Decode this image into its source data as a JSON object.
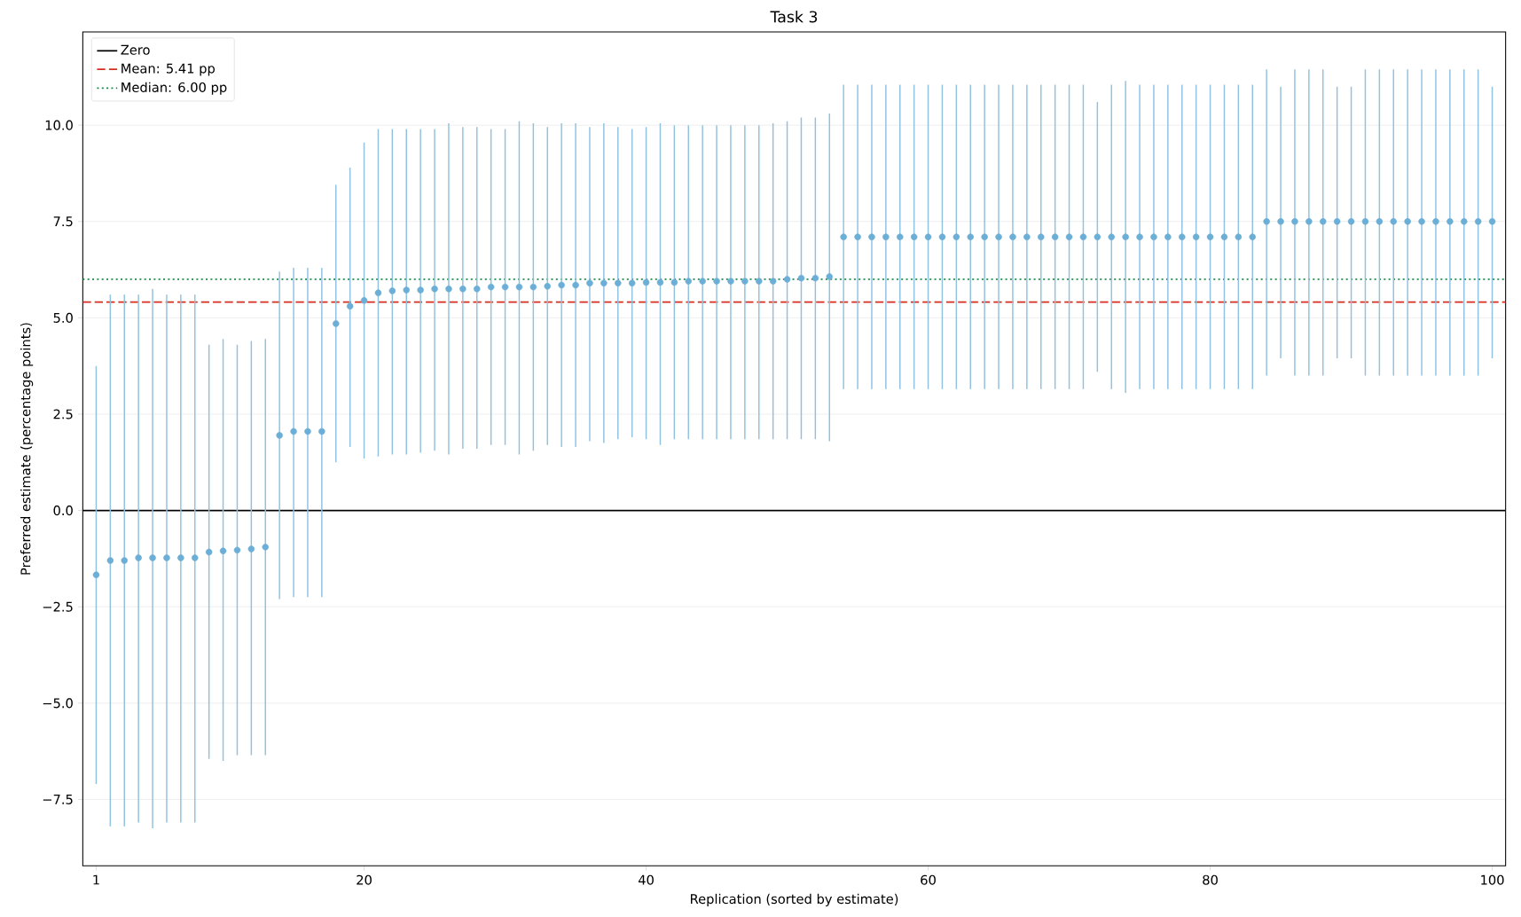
{
  "chart_data": {
    "type": "scatter",
    "title": "Task 3",
    "xlabel": "Replication (sorted by estimate)",
    "ylabel": "Preferred estimate (percentage points)",
    "x": [
      1,
      2,
      3,
      4,
      5,
      6,
      7,
      8,
      9,
      10,
      11,
      12,
      13,
      14,
      15,
      16,
      17,
      18,
      19,
      20,
      21,
      22,
      23,
      24,
      25,
      26,
      27,
      28,
      29,
      30,
      31,
      32,
      33,
      34,
      35,
      36,
      37,
      38,
      39,
      40,
      41,
      42,
      43,
      44,
      45,
      46,
      47,
      48,
      49,
      50,
      51,
      52,
      53,
      54,
      55,
      56,
      57,
      58,
      59,
      60,
      61,
      62,
      63,
      64,
      65,
      66,
      67,
      68,
      69,
      70,
      71,
      72,
      73,
      74,
      75,
      76,
      77,
      78,
      79,
      80,
      81,
      82,
      83,
      84,
      85,
      86,
      87,
      88,
      89,
      90,
      91,
      92,
      93,
      94,
      95,
      96,
      97,
      98,
      99,
      100
    ],
    "values": [
      -1.67,
      -1.3,
      -1.3,
      -1.23,
      -1.23,
      -1.23,
      -1.23,
      -1.23,
      -1.08,
      -1.05,
      -1.03,
      -1.0,
      -0.95,
      1.95,
      2.05,
      2.05,
      2.05,
      4.85,
      5.3,
      5.45,
      5.65,
      5.7,
      5.72,
      5.72,
      5.75,
      5.75,
      5.75,
      5.75,
      5.8,
      5.8,
      5.8,
      5.8,
      5.82,
      5.85,
      5.85,
      5.9,
      5.9,
      5.9,
      5.9,
      5.92,
      5.92,
      5.92,
      5.95,
      5.95,
      5.95,
      5.95,
      5.95,
      5.95,
      5.95,
      6.0,
      6.03,
      6.03,
      6.07,
      7.1,
      7.1,
      7.1,
      7.1,
      7.1,
      7.1,
      7.1,
      7.1,
      7.1,
      7.1,
      7.1,
      7.1,
      7.1,
      7.1,
      7.1,
      7.1,
      7.1,
      7.1,
      7.1,
      7.1,
      7.1,
      7.1,
      7.1,
      7.1,
      7.1,
      7.1,
      7.1,
      7.1,
      7.1,
      7.1,
      7.5,
      7.5,
      7.5,
      7.5,
      7.5,
      7.5,
      7.5,
      7.5,
      7.5,
      7.5,
      7.5,
      7.5,
      7.5,
      7.5,
      7.5,
      7.5,
      7.5
    ],
    "errors": [
      [
        -7.1,
        3.75
      ],
      [
        -8.2,
        5.6
      ],
      [
        -8.2,
        5.6
      ],
      [
        -8.1,
        5.6
      ],
      [
        -8.25,
        5.75
      ],
      [
        -8.1,
        5.6
      ],
      [
        -8.1,
        5.6
      ],
      [
        -8.1,
        5.6
      ],
      [
        -6.45,
        4.3
      ],
      [
        -6.5,
        4.45
      ],
      [
        -6.35,
        4.3
      ],
      [
        -6.35,
        4.4
      ],
      [
        -6.35,
        4.45
      ],
      [
        -2.3,
        6.2
      ],
      [
        -2.25,
        6.3
      ],
      [
        -2.25,
        6.3
      ],
      [
        -2.25,
        6.3
      ],
      [
        1.25,
        8.45
      ],
      [
        1.65,
        8.9
      ],
      [
        1.35,
        9.55
      ],
      [
        1.4,
        9.9
      ],
      [
        1.45,
        9.9
      ],
      [
        1.45,
        9.9
      ],
      [
        1.5,
        9.9
      ],
      [
        1.55,
        9.9
      ],
      [
        1.45,
        10.05
      ],
      [
        1.6,
        9.95
      ],
      [
        1.6,
        9.95
      ],
      [
        1.7,
        9.9
      ],
      [
        1.7,
        9.9
      ],
      [
        1.45,
        10.1
      ],
      [
        1.55,
        10.05
      ],
      [
        1.7,
        9.95
      ],
      [
        1.65,
        10.05
      ],
      [
        1.65,
        10.05
      ],
      [
        1.8,
        9.95
      ],
      [
        1.75,
        10.05
      ],
      [
        1.85,
        9.95
      ],
      [
        1.9,
        9.9
      ],
      [
        1.85,
        9.95
      ],
      [
        1.7,
        10.05
      ],
      [
        1.85,
        10.0
      ],
      [
        1.85,
        10.0
      ],
      [
        1.85,
        10.0
      ],
      [
        1.85,
        10.0
      ],
      [
        1.85,
        10.0
      ],
      [
        1.85,
        10.0
      ],
      [
        1.85,
        10.0
      ],
      [
        1.85,
        10.05
      ],
      [
        1.85,
        10.1
      ],
      [
        1.85,
        10.2
      ],
      [
        1.85,
        10.2
      ],
      [
        1.8,
        10.3
      ],
      [
        3.15,
        11.05
      ],
      [
        3.15,
        11.05
      ],
      [
        3.15,
        11.05
      ],
      [
        3.15,
        11.05
      ],
      [
        3.15,
        11.05
      ],
      [
        3.15,
        11.05
      ],
      [
        3.15,
        11.05
      ],
      [
        3.15,
        11.05
      ],
      [
        3.15,
        11.05
      ],
      [
        3.15,
        11.05
      ],
      [
        3.15,
        11.05
      ],
      [
        3.15,
        11.05
      ],
      [
        3.15,
        11.05
      ],
      [
        3.15,
        11.05
      ],
      [
        3.15,
        11.05
      ],
      [
        3.15,
        11.05
      ],
      [
        3.15,
        11.05
      ],
      [
        3.15,
        11.05
      ],
      [
        3.6,
        10.6
      ],
      [
        3.15,
        11.05
      ],
      [
        3.05,
        11.15
      ],
      [
        3.15,
        11.05
      ],
      [
        3.15,
        11.05
      ],
      [
        3.15,
        11.05
      ],
      [
        3.15,
        11.05
      ],
      [
        3.15,
        11.05
      ],
      [
        3.15,
        11.05
      ],
      [
        3.15,
        11.05
      ],
      [
        3.15,
        11.05
      ],
      [
        3.15,
        11.05
      ],
      [
        3.5,
        11.45
      ],
      [
        3.95,
        11.0
      ],
      [
        3.5,
        11.45
      ],
      [
        3.5,
        11.45
      ],
      [
        3.5,
        11.45
      ],
      [
        3.95,
        11.0
      ],
      [
        3.95,
        11.0
      ],
      [
        3.5,
        11.45
      ],
      [
        3.5,
        11.45
      ],
      [
        3.5,
        11.45
      ],
      [
        3.5,
        11.45
      ],
      [
        3.5,
        11.45
      ],
      [
        3.5,
        11.45
      ],
      [
        3.5,
        11.45
      ],
      [
        3.5,
        11.45
      ],
      [
        3.5,
        11.45
      ],
      [
        3.95,
        11.0
      ]
    ],
    "color": "#6baed6",
    "xlim": [
      0.05,
      100.95
    ],
    "ylim": [
      -9.22,
      12.42
    ],
    "xticks": [
      1,
      20,
      40,
      60,
      80,
      100
    ],
    "yticks": [
      {
        "value": -7.5,
        "label": "−7.5"
      },
      {
        "value": -5,
        "label": "−5.0"
      },
      {
        "value": -2.5,
        "label": "−2.5"
      },
      {
        "value": 0,
        "label": "0.0"
      },
      {
        "value": 2.5,
        "label": "2.5"
      },
      {
        "value": 5,
        "label": "5.0"
      },
      {
        "value": 7.5,
        "label": "7.5"
      },
      {
        "value": 10,
        "label": "10.0"
      }
    ],
    "ref_lines": [
      {
        "axis": "y",
        "value": 0,
        "label": "Zero",
        "color": "#000000",
        "line_style": "solid"
      },
      {
        "axis": "y",
        "value": 5.41,
        "label": "Mean: 5.41 pp",
        "color": "#d62f1f",
        "line_style": "dashed"
      },
      {
        "axis": "y",
        "value": 6.0,
        "label": "Median: 6.00 pp",
        "color": "#1e8a4c",
        "line_style": "dotted"
      }
    ],
    "grid": "y",
    "legend": "top left",
    "marker": "circle"
  }
}
